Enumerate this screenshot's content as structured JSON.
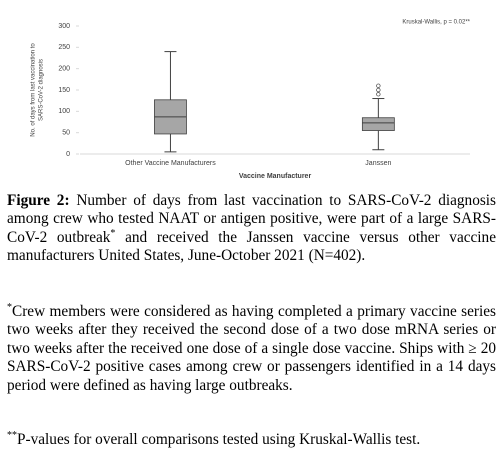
{
  "chart_data": {
    "type": "box",
    "annotation": "Kruskal-Wallis, p = 0.02**",
    "ylabel": [
      "No. of days from last vaccination to",
      "SARS-CoV-2 diagnosis"
    ],
    "xlabel": "Vaccine Manufacturer",
    "categories": [
      "Other Vaccine Manufacturers",
      "Janssen"
    ],
    "boxes": [
      {
        "min": 5,
        "q1": 47,
        "median": 87,
        "q3": 127,
        "max": 240,
        "outliers": []
      },
      {
        "min": 10,
        "q1": 55,
        "median": 73,
        "q3": 85,
        "max": 130,
        "outliers": [
          140,
          150,
          160
        ]
      }
    ],
    "color": "#a6a6a6",
    "ylim": [
      0,
      300
    ],
    "yticks": [
      0,
      50,
      100,
      150,
      200,
      250,
      300
    ]
  },
  "caption": {
    "label": "Figure 2:",
    "text": " Number of days from last vaccination to SARS-CoV-2 diagnosis among crew who tested NAAT or antigen positive, were part of a large SARS-CoV-2 outbreak",
    "sup": "*",
    "text_after": " and received the Janssen vaccine versus other vaccine manufacturers United States, June-October 2021 (N=402)."
  },
  "footnotes": [
    {
      "mark": "*",
      "text": "Crew members were considered as having completed a primary vaccine series two weeks after they received the second dose of a two dose mRNA series or two weeks after the received one dose of a single dose vaccine. Ships with ≥ 20 SARS-CoV-2 positive cases among crew or passengers identified in a 14 days period were defined as having large outbreaks."
    },
    {
      "mark": "**",
      "text": "P-values for overall comparisons tested using Kruskal-Wallis test."
    }
  ]
}
